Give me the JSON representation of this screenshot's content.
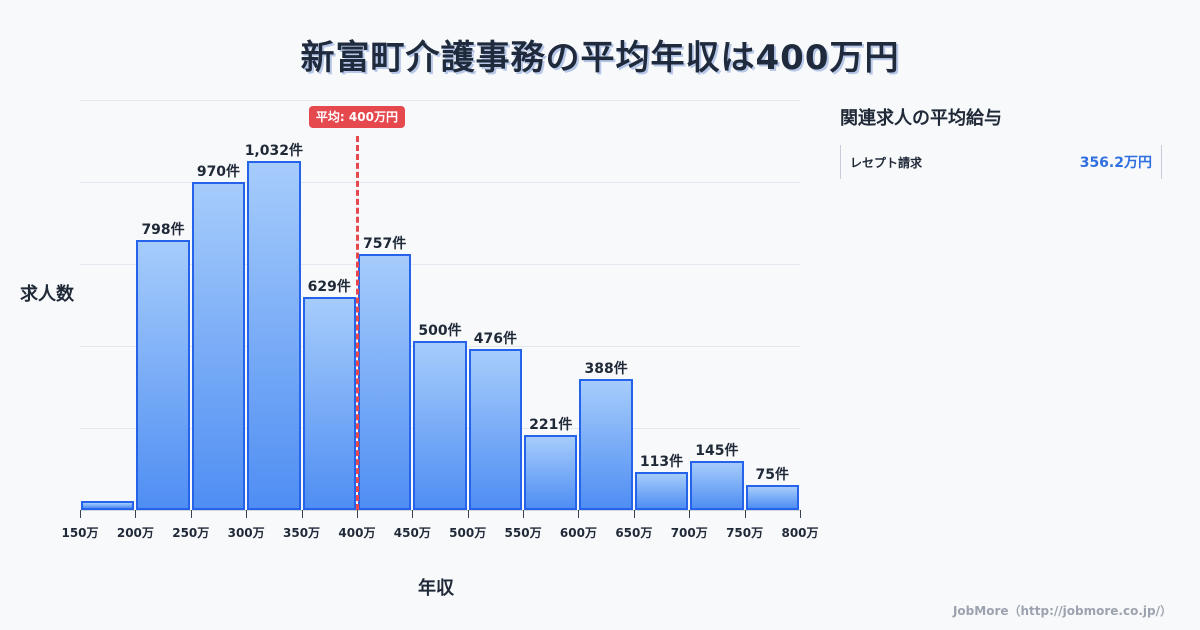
{
  "title": "新富町介護事務の平均年収は400万円",
  "chart_data": {
    "type": "bar",
    "title": "新富町介護事務の平均年収は400万円",
    "xlabel": "年収",
    "ylabel": "求人数",
    "categories": [
      "150-200万",
      "200-250万",
      "250-300万",
      "300-350万",
      "350-400万",
      "400-450万",
      "450-500万",
      "500-550万",
      "550-600万",
      "600-650万",
      "650-700万",
      "700-750万",
      "750-800万"
    ],
    "values": [
      27,
      798,
      970,
      1032,
      629,
      757,
      500,
      476,
      221,
      388,
      113,
      145,
      75
    ],
    "value_labels": [
      "",
      "798件",
      "970件",
      "1,032件",
      "629件",
      "757件",
      "500件",
      "476件",
      "221件",
      "388件",
      "113件",
      "145件",
      "75件"
    ],
    "x_ticks": [
      "150万",
      "200万",
      "250万",
      "300万",
      "350万",
      "400万",
      "450万",
      "500万",
      "550万",
      "600万",
      "650万",
      "700万",
      "750万",
      "800万"
    ],
    "ylim": [
      0,
      1212
    ],
    "grid": true,
    "average_line": {
      "x": 400,
      "label": "平均: 400万円",
      "color": "#e5484d"
    },
    "bar_color_top": "#a6ccfb",
    "bar_color_bottom": "#4f8ef3",
    "bar_border": "#2563eb"
  },
  "sidebar": {
    "title": "関連求人の平均給与",
    "items": [
      {
        "name": "レセプト請求",
        "value": "356.2万円"
      }
    ]
  },
  "footer": "JobMore（http://jobmore.co.jp/）"
}
